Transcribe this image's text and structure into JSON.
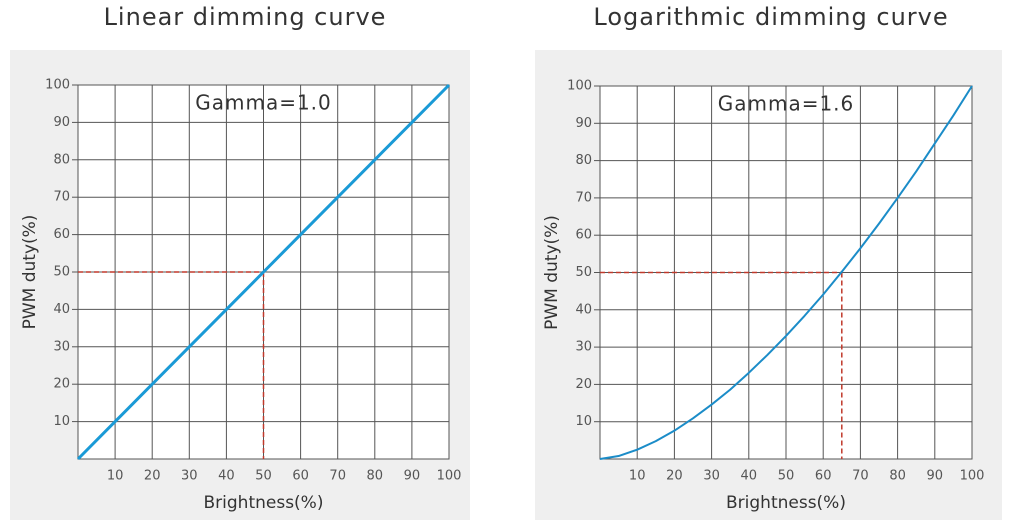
{
  "chart_data": [
    {
      "type": "line",
      "title": "Linear dimming curve",
      "annotation": "Gamma=1.0",
      "x_label": "Brightness(%)",
      "y_label": "PWM duty(%)",
      "x": [
        0,
        10,
        20,
        30,
        40,
        50,
        60,
        70,
        80,
        90,
        100
      ],
      "series": [
        {
          "name": "Gamma=1.0",
          "color": "#1a9ad6",
          "values": [
            0,
            10,
            20,
            30,
            40,
            50,
            60,
            70,
            80,
            90,
            100
          ]
        }
      ],
      "guide": {
        "x": 50,
        "y": 50,
        "color": "#c0392b"
      },
      "xlim": [
        0,
        100
      ],
      "ylim": [
        0,
        100
      ],
      "xticks": [
        10,
        20,
        30,
        40,
        50,
        60,
        70,
        80,
        90,
        100
      ],
      "yticks": [
        10,
        20,
        30,
        40,
        50,
        60,
        70,
        80,
        90,
        100
      ],
      "grid": true
    },
    {
      "type": "line",
      "title": "Logarithmic dimming curve",
      "annotation": "Gamma=1.6",
      "x_label": "Brightness(%)",
      "y_label": "PWM duty(%)",
      "x": [
        0,
        5,
        10,
        15,
        20,
        25,
        30,
        35,
        40,
        45,
        50,
        55,
        60,
        65,
        70,
        75,
        80,
        85,
        90,
        95,
        100
      ],
      "series": [
        {
          "name": "Gamma=1.6",
          "color": "#1b8cc8",
          "values": [
            0,
            0.8,
            2.5,
            4.8,
            7.6,
            10.9,
            14.6,
            18.6,
            23.1,
            27.9,
            33.0,
            38.4,
            44.1,
            50.2,
            56.5,
            63.1,
            70.0,
            77.1,
            84.6,
            92.1,
            100
          ]
        }
      ],
      "guide": {
        "x": 65,
        "y": 50,
        "color": "#c0392b"
      },
      "xlim": [
        0,
        100
      ],
      "ylim": [
        0,
        100
      ],
      "xticks": [
        10,
        20,
        30,
        40,
        50,
        60,
        70,
        80,
        90,
        100
      ],
      "yticks": [
        10,
        20,
        30,
        40,
        50,
        60,
        70,
        80,
        90,
        100
      ],
      "grid": true
    }
  ]
}
